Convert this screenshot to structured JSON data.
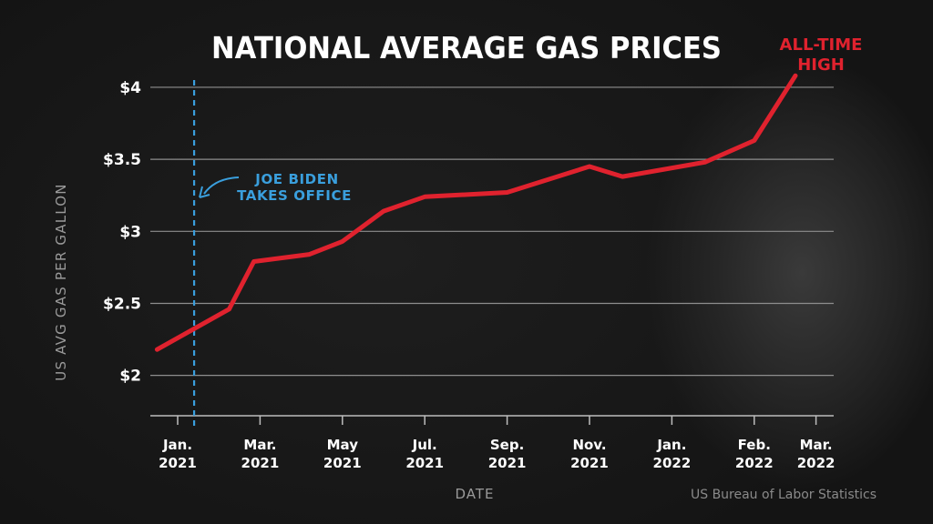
{
  "chart_data": {
    "type": "line",
    "title": "NATIONAL AVERAGE GAS PRICES",
    "xlabel": "DATE",
    "ylabel": "US AVG GAS PER GALLON",
    "source": "US Bureau of Labor Statistics",
    "ylim": [
      1.72,
      4.05
    ],
    "y_ticks": [
      {
        "value": 2,
        "label": "$2"
      },
      {
        "value": 2.5,
        "label": "$2.5"
      },
      {
        "value": 3,
        "label": "$3"
      },
      {
        "value": 3.5,
        "label": "$3.5"
      },
      {
        "value": 4,
        "label": "$4"
      }
    ],
    "x_ticks": [
      {
        "month": 0,
        "line1": "Jan.",
        "line2": "2021"
      },
      {
        "month": 2,
        "line1": "Mar.",
        "line2": "2021"
      },
      {
        "month": 4,
        "line1": "May",
        "line2": "2021"
      },
      {
        "month": 6,
        "line1": "Jul.",
        "line2": "2021"
      },
      {
        "month": 8,
        "line1": "Sep.",
        "line2": "2021"
      },
      {
        "month": 10,
        "line1": "Nov.",
        "line2": "2021"
      },
      {
        "month": 12,
        "line1": "Jan.",
        "line2": "2022"
      },
      {
        "month": 14,
        "line1": "Feb.",
        "line2": "2022"
      },
      {
        "month": 15.5,
        "line1": "Mar.",
        "line2": "2022"
      }
    ],
    "series": [
      {
        "name": "National average gas price",
        "color": "#e0222e",
        "points": [
          {
            "month": -0.5,
            "value": 2.18
          },
          {
            "month": 1.25,
            "value": 2.46
          },
          {
            "month": 1.85,
            "value": 2.79
          },
          {
            "month": 3.2,
            "value": 2.84
          },
          {
            "month": 4.0,
            "value": 2.93
          },
          {
            "month": 5.0,
            "value": 3.14
          },
          {
            "month": 6.0,
            "value": 3.24
          },
          {
            "month": 8.0,
            "value": 3.27
          },
          {
            "month": 10.0,
            "value": 3.45
          },
          {
            "month": 10.8,
            "value": 3.38
          },
          {
            "month": 12.8,
            "value": 3.48
          },
          {
            "month": 14.0,
            "value": 3.63
          },
          {
            "month": 15.0,
            "value": 4.08
          }
        ]
      }
    ],
    "annotations": {
      "biden": {
        "month": 0.4,
        "line1": "JOE BIDEN",
        "line2": "TAKES OFFICE",
        "color": "#3a9fdd"
      },
      "high": {
        "line1": "ALL-TIME",
        "line2": "HIGH",
        "color": "#e0222e"
      }
    }
  }
}
